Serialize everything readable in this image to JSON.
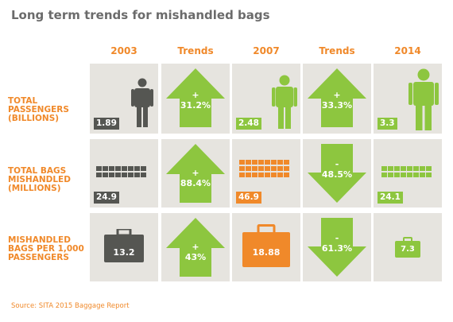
{
  "title": "Long term trends for mishandled bags",
  "columns": [
    "2003",
    "Trends",
    "2007",
    "Trends",
    "2014"
  ],
  "rows": [
    {
      "label": "TOTAL PASSENGERS (BILLIONS)",
      "v2003": "1.89",
      "trend1": {
        "direction": "up",
        "sign": "+",
        "value": "31.2%"
      },
      "v2007": "2.48",
      "trend2": {
        "direction": "up",
        "sign": "+",
        "value": "33.3%"
      },
      "v2014": "3.3"
    },
    {
      "label": "TOTAL BAGS MISHANDLED (MILLIONS)",
      "v2003": "24.9",
      "trend1": {
        "direction": "up",
        "sign": "+",
        "value": "88.4%"
      },
      "v2007": "46.9",
      "trend2": {
        "direction": "down",
        "sign": "-",
        "value": "48.5%"
      },
      "v2014": "24.1"
    },
    {
      "label": "MISHANDLED BAGS PER 1,000 PASSENGERS",
      "v2003": "13.2",
      "trend1": {
        "direction": "up",
        "sign": "+",
        "value": "43%"
      },
      "v2007": "18.88",
      "trend2": {
        "direction": "down",
        "sign": "-",
        "value": "61.3%"
      },
      "v2014": "7.3"
    }
  ],
  "source": "Source: SITA 2015 Baggage Report",
  "colors": {
    "dark": "#555652",
    "orange": "#f0892a",
    "green": "#8dc63f",
    "cell": "#e6e4df"
  },
  "icons": [
    "person-icon",
    "bag-row-icon",
    "briefcase-icon",
    "arrow-up-icon",
    "arrow-down-icon"
  ]
}
